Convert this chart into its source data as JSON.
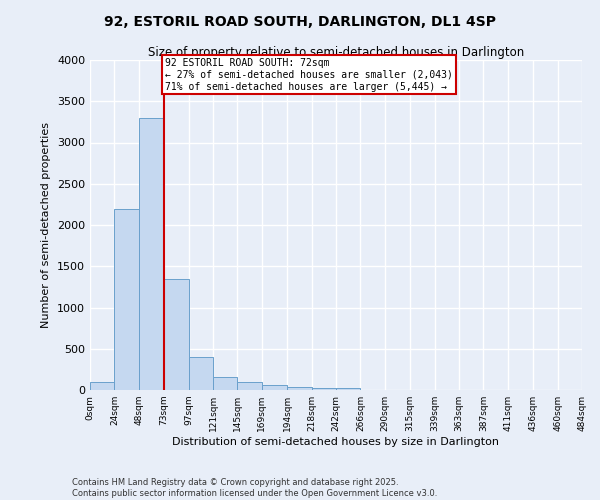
{
  "title": "92, ESTORIL ROAD SOUTH, DARLINGTON, DL1 4SP",
  "subtitle": "Size of property relative to semi-detached houses in Darlington",
  "xlabel": "Distribution of semi-detached houses by size in Darlington",
  "ylabel": "Number of semi-detached properties",
  "footnote1": "Contains HM Land Registry data © Crown copyright and database right 2025.",
  "footnote2": "Contains public sector information licensed under the Open Government Licence v3.0.",
  "property_label": "92 ESTORIL ROAD SOUTH: 72sqm",
  "pct_smaller": 27,
  "pct_larger": 71,
  "n_smaller": 2043,
  "n_larger": 5445,
  "bin_labels": [
    "0sqm",
    "24sqm",
    "48sqm",
    "73sqm",
    "97sqm",
    "121sqm",
    "145sqm",
    "169sqm",
    "194sqm",
    "218sqm",
    "242sqm",
    "266sqm",
    "290sqm",
    "315sqm",
    "339sqm",
    "363sqm",
    "387sqm",
    "411sqm",
    "436sqm",
    "460sqm",
    "484sqm"
  ],
  "bin_edges": [
    0,
    24,
    48,
    73,
    97,
    121,
    145,
    169,
    194,
    218,
    242,
    266,
    290,
    315,
    339,
    363,
    387,
    411,
    436,
    460,
    484
  ],
  "bar_heights": [
    100,
    2200,
    3300,
    1350,
    400,
    160,
    100,
    60,
    40,
    20,
    20,
    5,
    0,
    0,
    0,
    0,
    0,
    0,
    0,
    0
  ],
  "bar_color": "#c5d8f0",
  "bar_edge_color": "#6aa0cc",
  "vline_color": "#cc0000",
  "vline_x": 73,
  "annotation_box_color": "#cc0000",
  "background_color": "#e8eef8",
  "grid_color": "#ffffff",
  "ylim": [
    0,
    4000
  ],
  "yticks": [
    0,
    500,
    1000,
    1500,
    2000,
    2500,
    3000,
    3500,
    4000
  ]
}
